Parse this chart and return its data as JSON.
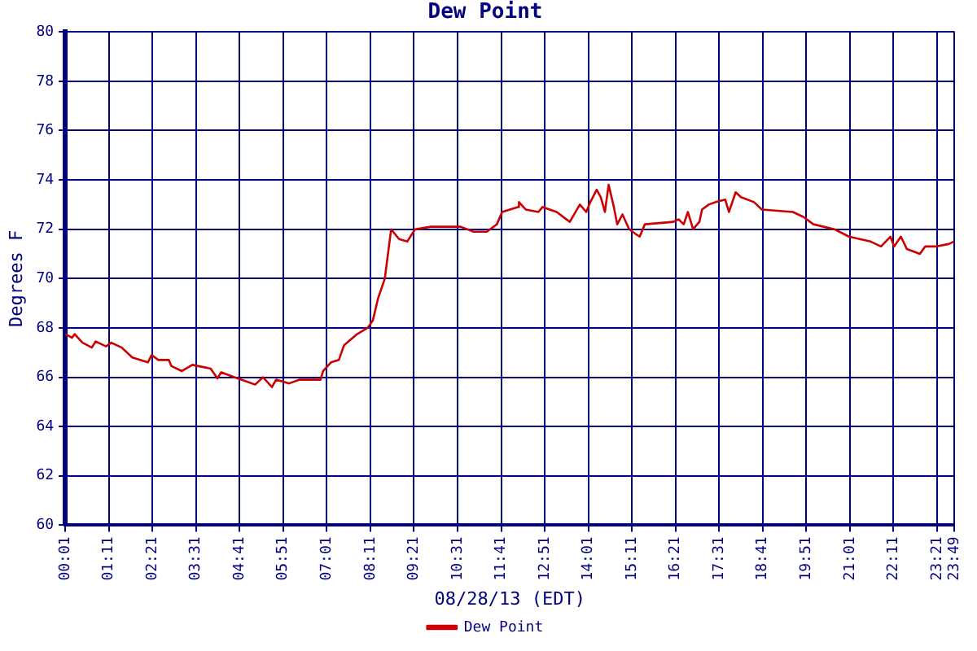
{
  "chart_data": {
    "type": "line",
    "title": "Dew Point",
    "xlabel": "08/28/13 (EDT)",
    "ylabel": "Degrees F",
    "xlim": [
      0.0167,
      23.8167
    ],
    "xticks": [
      {
        "value": 0.0167,
        "label": "00:01"
      },
      {
        "value": 1.1833,
        "label": "01:11"
      },
      {
        "value": 2.35,
        "label": "02:21"
      },
      {
        "value": 3.5167,
        "label": "03:31"
      },
      {
        "value": 4.6833,
        "label": "04:41"
      },
      {
        "value": 5.85,
        "label": "05:51"
      },
      {
        "value": 7.0167,
        "label": "07:01"
      },
      {
        "value": 8.1833,
        "label": "08:11"
      },
      {
        "value": 9.35,
        "label": "09:21"
      },
      {
        "value": 10.5167,
        "label": "10:31"
      },
      {
        "value": 11.6833,
        "label": "11:41"
      },
      {
        "value": 12.85,
        "label": "12:51"
      },
      {
        "value": 14.0167,
        "label": "14:01"
      },
      {
        "value": 15.1833,
        "label": "15:11"
      },
      {
        "value": 16.35,
        "label": "16:21"
      },
      {
        "value": 17.5167,
        "label": "17:31"
      },
      {
        "value": 18.6833,
        "label": "18:41"
      },
      {
        "value": 19.85,
        "label": "19:51"
      },
      {
        "value": 21.0167,
        "label": "21:01"
      },
      {
        "value": 22.1833,
        "label": "22:11"
      },
      {
        "value": 23.35,
        "label": "23:21"
      },
      {
        "value": 23.8167,
        "label": "23:49"
      }
    ],
    "ylim": [
      60,
      80
    ],
    "yticks": [
      60,
      62,
      64,
      66,
      68,
      70,
      72,
      74,
      76,
      78,
      80
    ],
    "grid": true,
    "legend": "bottom",
    "marker": "none",
    "line_style": "solid",
    "series": [
      {
        "name": "Dew Point",
        "color": "#cc0000",
        "x": [
          0.02,
          0.2,
          0.27,
          0.48,
          0.73,
          0.83,
          1.11,
          1.25,
          1.53,
          1.81,
          2.02,
          2.23,
          2.33,
          2.51,
          2.79,
          2.86,
          3.14,
          3.42,
          3.91,
          4.09,
          4.19,
          4.54,
          4.82,
          5.1,
          5.31,
          5.55,
          5.66,
          6.01,
          6.29,
          6.85,
          6.92,
          7.13,
          7.34,
          7.48,
          7.83,
          8.11,
          8.25,
          8.39,
          8.57,
          8.74,
          8.95,
          9.17,
          9.38,
          9.8,
          10.6,
          10.95,
          11.3,
          11.57,
          11.71,
          12.13,
          12.16,
          12.34,
          12.68,
          12.79,
          13.17,
          13.52,
          13.79,
          13.96,
          14.07,
          14.24,
          14.35,
          14.46,
          14.56,
          14.7,
          14.79,
          14.93,
          15.11,
          15.29,
          15.39,
          15.53,
          16.29,
          16.43,
          16.57,
          16.68,
          16.82,
          16.99,
          17.06,
          17.24,
          17.43,
          17.68,
          17.78,
          17.96,
          18.1,
          18.45,
          18.66,
          19.49,
          19.77,
          20.04,
          20.6,
          20.99,
          21.57,
          21.85,
          22.1,
          22.2,
          22.38,
          22.54,
          22.89,
          23.03,
          23.31,
          23.66,
          23.8
        ],
        "values": [
          67.75,
          67.6,
          67.75,
          67.4,
          67.2,
          67.45,
          67.25,
          67.4,
          67.2,
          66.8,
          66.7,
          66.6,
          66.9,
          66.7,
          66.7,
          66.45,
          66.25,
          66.5,
          66.35,
          65.95,
          66.2,
          66.0,
          65.85,
          65.7,
          66.0,
          65.6,
          65.9,
          65.75,
          65.9,
          65.9,
          66.25,
          66.6,
          66.7,
          67.3,
          67.75,
          68.0,
          68.3,
          69.2,
          70.0,
          72.0,
          71.6,
          71.5,
          72.0,
          72.1,
          72.1,
          71.9,
          71.9,
          72.2,
          72.7,
          72.9,
          73.1,
          72.8,
          72.7,
          72.9,
          72.7,
          72.3,
          73.0,
          72.7,
          73.1,
          73.6,
          73.3,
          72.7,
          73.8,
          72.9,
          72.2,
          72.6,
          72.0,
          71.8,
          71.7,
          72.2,
          72.3,
          72.4,
          72.2,
          72.7,
          72.0,
          72.3,
          72.8,
          73.0,
          73.1,
          73.2,
          72.7,
          73.5,
          73.3,
          73.1,
          72.8,
          72.7,
          72.5,
          72.2,
          72.0,
          71.7,
          71.5,
          71.3,
          71.7,
          71.3,
          71.7,
          71.2,
          71.0,
          71.3,
          71.3,
          71.4,
          71.5
        ]
      }
    ]
  }
}
